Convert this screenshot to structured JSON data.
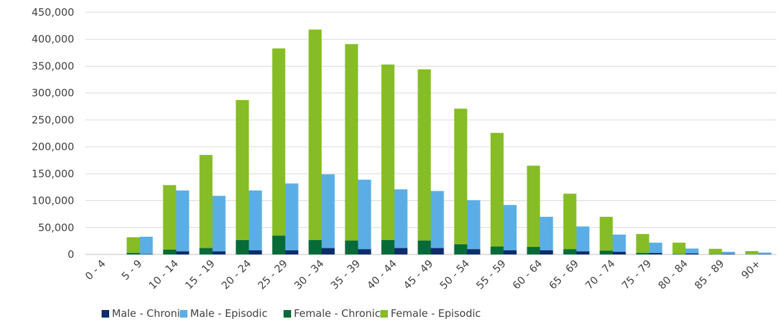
{
  "chart_data": {
    "type": "bar",
    "title": "",
    "xlabel": "",
    "ylabel": "",
    "ylim": [
      0,
      450000
    ],
    "y_ticks": [
      0,
      50000,
      100000,
      150000,
      200000,
      250000,
      300000,
      350000,
      400000,
      450000
    ],
    "y_tick_labels": [
      "0",
      "50,000",
      "100,000",
      "150,000",
      "200,000",
      "250,000",
      "300,000",
      "350,000",
      "400,000",
      "450,000"
    ],
    "grid": true,
    "legend_position": "bottom",
    "categories": [
      "0 - 4",
      "5 - 9",
      "10 - 14",
      "15 - 19",
      "20 - 24",
      "25 - 29",
      "30 - 34",
      "35 - 39",
      "40 - 44",
      "45 - 49",
      "50 - 54",
      "55 - 59",
      "60 - 64",
      "65 - 69",
      "70 - 74",
      "75 - 79",
      "80 - 84",
      "85 - 89",
      "90+"
    ],
    "stacks": [
      {
        "name": "Female",
        "segments": [
          "Female - Chronic",
          "Female - Episodic"
        ]
      },
      {
        "name": "Male",
        "segments": [
          "Male - Chronic",
          "Male - Episodic"
        ]
      }
    ],
    "series": [
      {
        "name": "Male - Chronic",
        "color": "#0d2d6c",
        "values": [
          0,
          1000,
          6000,
          6000,
          8000,
          8000,
          12000,
          10000,
          12000,
          12000,
          10000,
          8000,
          8000,
          6000,
          5000,
          3000,
          2000,
          1000,
          500
        ]
      },
      {
        "name": "Male - Episodic",
        "color": "#5baee5",
        "values": [
          0,
          32000,
          113000,
          103000,
          111000,
          124000,
          137000,
          129000,
          109000,
          106000,
          91000,
          84000,
          62000,
          46000,
          32000,
          19000,
          9000,
          4000,
          3000
        ]
      },
      {
        "name": "Female - Chronic",
        "color": "#086a38",
        "values": [
          0,
          3000,
          9000,
          12000,
          27000,
          35000,
          27000,
          26000,
          27000,
          26000,
          19000,
          15000,
          14000,
          10000,
          7000,
          3000,
          1000,
          500,
          300
        ]
      },
      {
        "name": "Female - Episodic",
        "color": "#86bc25",
        "values": [
          0,
          29000,
          120000,
          173000,
          260000,
          348000,
          391000,
          365000,
          326000,
          318000,
          252000,
          211000,
          151000,
          103000,
          63000,
          35000,
          21000,
          10000,
          6000
        ]
      }
    ]
  }
}
